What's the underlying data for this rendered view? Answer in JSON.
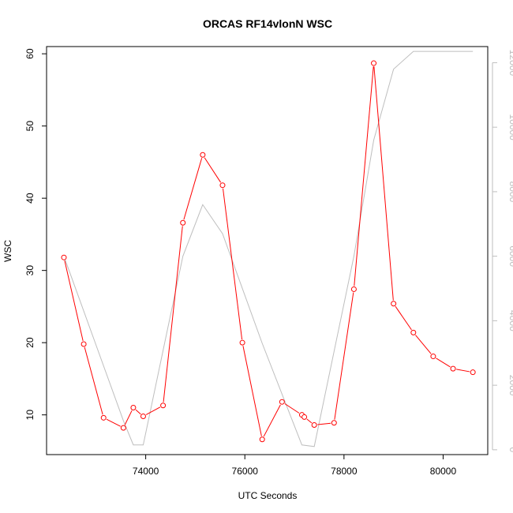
{
  "chart_data": {
    "type": "line",
    "title": "ORCAS RF14vlonN WSC",
    "xlabel": "UTC Seconds",
    "ylabel": "WSC",
    "xlim": [
      72000,
      80900
    ],
    "ylim": [
      4.5,
      61
    ],
    "y2lim": [
      -150,
      12500
    ],
    "x_ticks": [
      74000,
      76000,
      78000,
      80000
    ],
    "y_ticks": [
      10,
      20,
      30,
      40,
      50,
      60
    ],
    "y2_ticks": [
      0,
      2000,
      4000,
      6000,
      8000,
      10000,
      12000
    ],
    "series": [
      {
        "axis": "left",
        "color": "#ff0000",
        "marker": "open-circle",
        "x": [
          72350,
          72750,
          73150,
          73550,
          73750,
          73950,
          74350,
          74750,
          75150,
          75550,
          75950,
          76350,
          76750,
          77150,
          77200,
          77400,
          77800,
          78200,
          78600,
          79000,
          79400,
          79800,
          80200,
          80600
        ],
        "values": [
          31.8,
          19.8,
          9.6,
          8.2,
          11.0,
          9.8,
          11.3,
          36.6,
          46.0,
          41.8,
          20.0,
          6.6,
          11.8,
          10.0,
          9.7,
          8.6,
          8.9,
          27.4,
          58.7,
          25.4,
          21.4,
          18.1,
          16.4,
          15.9
        ]
      },
      {
        "axis": "right",
        "color": "#bebebe",
        "marker": "none",
        "x": [
          72350,
          73550,
          73750,
          73950,
          74750,
          75150,
          75550,
          76350,
          77150,
          77400,
          78200,
          78600,
          79000,
          79400,
          80600
        ],
        "values": [
          6000,
          900,
          150,
          150,
          6000,
          7600,
          6700,
          3300,
          150,
          100,
          6000,
          9600,
          11800,
          12350,
          12350
        ]
      }
    ]
  }
}
